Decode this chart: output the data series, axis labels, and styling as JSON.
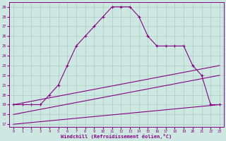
{
  "xlabel": "Windchill (Refroidissement éolien,°C)",
  "background_color": "#cce8e0",
  "grid_color": "#aaccc4",
  "line_color": "#880088",
  "xlim": [
    -0.5,
    23.5
  ],
  "ylim": [
    16.7,
    29.5
  ],
  "xticks": [
    0,
    1,
    2,
    3,
    4,
    5,
    6,
    7,
    8,
    9,
    10,
    11,
    12,
    13,
    14,
    15,
    16,
    17,
    18,
    19,
    20,
    21,
    22,
    23
  ],
  "yticks": [
    17,
    18,
    19,
    20,
    21,
    22,
    23,
    24,
    25,
    26,
    27,
    28,
    29
  ],
  "curve1_x": [
    0,
    1,
    2,
    3,
    4,
    5,
    6,
    7,
    8,
    9,
    10,
    11,
    12,
    13,
    14,
    15,
    16,
    17,
    18,
    19,
    20,
    21,
    22,
    23
  ],
  "curve1_y": [
    19,
    19,
    19,
    19,
    20,
    21,
    23,
    25,
    26,
    27,
    28,
    29,
    29,
    29,
    28,
    26,
    25,
    25,
    25,
    25,
    23,
    22,
    19,
    19
  ],
  "line2_x": [
    0,
    23
  ],
  "line2_y": [
    19.0,
    23.0
  ],
  "line3_x": [
    0,
    23
  ],
  "line3_y": [
    18.0,
    22.0
  ],
  "line4_x": [
    0,
    23
  ],
  "line4_y": [
    17.0,
    19.0
  ]
}
